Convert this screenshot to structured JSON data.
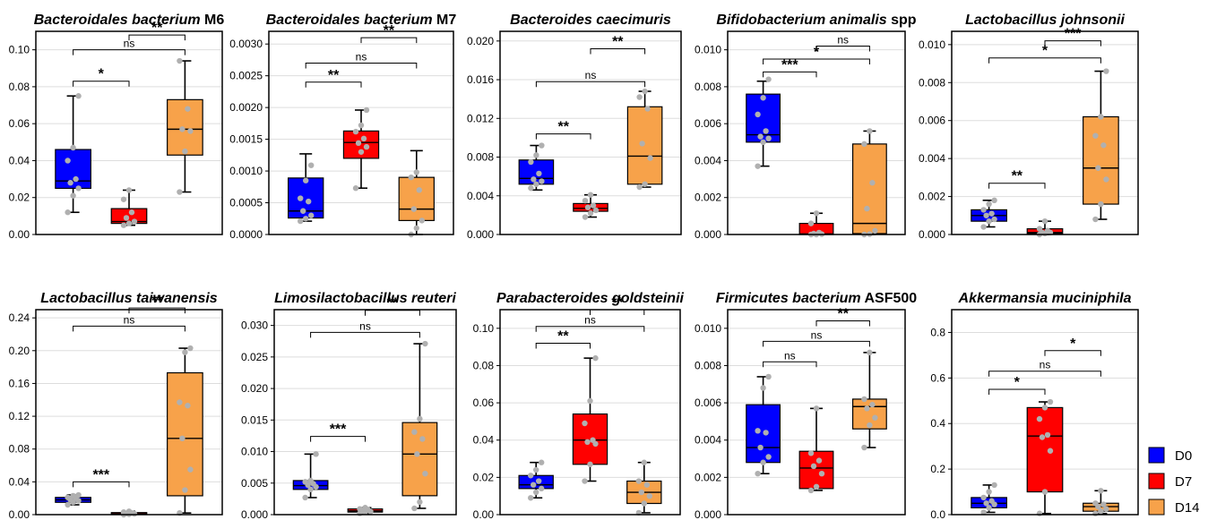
{
  "legend": {
    "entries": [
      {
        "label": "D0",
        "color": "#0000FF"
      },
      {
        "label": "D7",
        "color": "#FF0000"
      },
      {
        "label": "D14",
        "color": "#F7A24A"
      }
    ]
  },
  "chart_data": [
    {
      "type": "box",
      "title_italic": "Bacteroidales bacterium",
      "title_plain": " M6",
      "yticks": [
        "0.00",
        "0.02",
        "0.04",
        "0.06",
        "0.08",
        "0.10"
      ],
      "ylim": [
        0,
        0.11
      ],
      "categories": [
        "D0",
        "D7",
        "D14"
      ],
      "boxes": [
        {
          "group": "D0",
          "min": 0.012,
          "q1": 0.025,
          "median": 0.029,
          "q3": 0.046,
          "max": 0.075,
          "points": [
            0.012,
            0.021,
            0.025,
            0.028,
            0.03,
            0.04,
            0.047,
            0.075
          ]
        },
        {
          "group": "D7",
          "min": 0.005,
          "q1": 0.006,
          "median": 0.007,
          "q3": 0.014,
          "max": 0.024,
          "points": [
            0.005,
            0.006,
            0.007,
            0.009,
            0.012,
            0.019,
            0.024
          ]
        },
        {
          "group": "D14",
          "min": 0.023,
          "q1": 0.043,
          "median": 0.057,
          "q3": 0.073,
          "max": 0.094,
          "points": [
            0.023,
            0.045,
            0.056,
            0.057,
            0.068,
            0.094
          ]
        }
      ],
      "comparisons": [
        {
          "from": 0,
          "to": 1,
          "label": "*",
          "y": 0.083
        },
        {
          "from": 0,
          "to": 2,
          "label": "ns",
          "y": 0.1
        },
        {
          "from": 1,
          "to": 2,
          "label": "**",
          "y": 0.108
        }
      ]
    },
    {
      "type": "box",
      "title_italic": "Bacteroidales bacterium",
      "title_plain": " M7",
      "yticks": [
        "0.0000",
        "0.0005",
        "0.0010",
        "0.0015",
        "0.0020",
        "0.0025",
        "0.0030"
      ],
      "ylim": [
        0,
        0.0032
      ],
      "categories": [
        "D0",
        "D7",
        "D14"
      ],
      "boxes": [
        {
          "group": "D0",
          "min": 0.00021,
          "q1": 0.00026,
          "median": 0.00037,
          "q3": 0.00089,
          "max": 0.00127,
          "points": [
            0.00021,
            0.00025,
            0.0003,
            0.00037,
            0.00052,
            0.00057,
            0.00085,
            0.00109
          ]
        },
        {
          "group": "D7",
          "min": 0.00073,
          "q1": 0.0012,
          "median": 0.00145,
          "q3": 0.00163,
          "max": 0.00196,
          "points": [
            0.00073,
            0.0013,
            0.00138,
            0.00144,
            0.00151,
            0.00162,
            0.00172,
            0.00196
          ]
        },
        {
          "group": "D14",
          "min": 0,
          "q1": 0.00022,
          "median": 0.0004,
          "q3": 0.0009,
          "max": 0.00132,
          "points": [
            0,
            0.0001,
            0.00022,
            0.0004,
            0.0007,
            0.0009,
            0.00098
          ]
        }
      ],
      "comparisons": [
        {
          "from": 0,
          "to": 1,
          "label": "**",
          "y": 0.0024
        },
        {
          "from": 0,
          "to": 2,
          "label": "ns",
          "y": 0.0027
        },
        {
          "from": 1,
          "to": 2,
          "label": "**",
          "y": 0.0031
        }
      ]
    },
    {
      "type": "box",
      "title_italic": "Bacteroides caecimuris",
      "title_plain": "",
      "yticks": [
        "0.000",
        "0.004",
        "0.008",
        "0.012",
        "0.016",
        "0.020"
      ],
      "ylim": [
        0,
        0.021
      ],
      "categories": [
        "D0",
        "D7",
        "D14"
      ],
      "boxes": [
        {
          "group": "D0",
          "min": 0.0046,
          "q1": 0.0052,
          "median": 0.0058,
          "q3": 0.0077,
          "max": 0.0092,
          "points": [
            0.0048,
            0.0052,
            0.0055,
            0.0057,
            0.0063,
            0.0075,
            0.0082,
            0.0092
          ]
        },
        {
          "group": "D7",
          "min": 0.0018,
          "q1": 0.0024,
          "median": 0.0027,
          "q3": 0.0032,
          "max": 0.0041,
          "points": [
            0.0018,
            0.0022,
            0.0025,
            0.0028,
            0.003,
            0.0035,
            0.0041
          ]
        },
        {
          "group": "D14",
          "min": 0.0049,
          "q1": 0.0052,
          "median": 0.0081,
          "q3": 0.0132,
          "max": 0.0148,
          "points": [
            0.0049,
            0.0052,
            0.0079,
            0.0094,
            0.013,
            0.0142,
            0.0148
          ]
        }
      ],
      "comparisons": [
        {
          "from": 0,
          "to": 1,
          "label": "**",
          "y": 0.0104
        },
        {
          "from": 0,
          "to": 2,
          "label": "ns",
          "y": 0.0158
        },
        {
          "from": 1,
          "to": 2,
          "label": "**",
          "y": 0.0192
        }
      ]
    },
    {
      "type": "box",
      "title_italic": "Bifidobacterium animalis",
      "title_plain": " spp",
      "yticks": [
        "0.000",
        "0.002",
        "0.004",
        "0.006",
        "0.008",
        "0.010"
      ],
      "ylim": [
        0,
        0.011
      ],
      "categories": [
        "D0",
        "D7",
        "D14"
      ],
      "boxes": [
        {
          "group": "D0",
          "min": 0.0037,
          "q1": 0.005,
          "median": 0.0054,
          "q3": 0.0076,
          "max": 0.0083,
          "points": [
            0.0037,
            0.005,
            0.0052,
            0.0053,
            0.0056,
            0.0065,
            0.0074,
            0.0084
          ]
        },
        {
          "group": "D7",
          "min": 0,
          "q1": 0,
          "median": 3e-05,
          "q3": 0.0006,
          "max": 0.00115,
          "points": [
            0,
            0,
            2e-05,
            5e-05,
            0.0001,
            0.0006,
            0.00115
          ]
        },
        {
          "group": "D14",
          "min": 0,
          "q1": 5e-05,
          "median": 0.0006,
          "q3": 0.0049,
          "max": 0.0056,
          "points": [
            0,
            2e-05,
            0.0002,
            0.0014,
            0.0028,
            0.0049,
            0.0056
          ]
        }
      ],
      "comparisons": [
        {
          "from": 0,
          "to": 1,
          "label": "***",
          "y": 0.0088
        },
        {
          "from": 0,
          "to": 2,
          "label": "*",
          "y": 0.0095
        },
        {
          "from": 1,
          "to": 2,
          "label": "ns",
          "y": 0.0102
        }
      ]
    },
    {
      "type": "box",
      "title_italic": "Lactobacillus johnsonii",
      "title_plain": "",
      "yticks": [
        "0.000",
        "0.002",
        "0.004",
        "0.006",
        "0.008",
        "0.010"
      ],
      "ylim": [
        0,
        0.0107
      ],
      "categories": [
        "D0",
        "D7",
        "D14"
      ],
      "boxes": [
        {
          "group": "D0",
          "min": 0.0004,
          "q1": 0.0007,
          "median": 0.001,
          "q3": 0.0013,
          "max": 0.0018,
          "points": [
            0.0004,
            0.0007,
            0.0008,
            0.001,
            0.0011,
            0.0013,
            0.0016,
            0.0018
          ]
        },
        {
          "group": "D7",
          "min": 0,
          "q1": 5e-05,
          "median": 0.0001,
          "q3": 0.0003,
          "max": 0.0007,
          "points": [
            0,
            5e-05,
            0.0001,
            0.0001,
            0.0002,
            0.0003,
            0.0007
          ]
        },
        {
          "group": "D14",
          "min": 0.0008,
          "q1": 0.0016,
          "median": 0.0035,
          "q3": 0.0062,
          "max": 0.0086,
          "points": [
            0.0008,
            0.0016,
            0.0029,
            0.0035,
            0.0047,
            0.0052,
            0.0062,
            0.0086
          ]
        }
      ],
      "comparisons": [
        {
          "from": 0,
          "to": 1,
          "label": "**",
          "y": 0.0027
        },
        {
          "from": 0,
          "to": 2,
          "label": "*",
          "y": 0.0093
        },
        {
          "from": 1,
          "to": 2,
          "label": "***",
          "y": 0.0102
        }
      ]
    },
    {
      "type": "box",
      "title_italic": "Lactobacillus taiwanensis",
      "title_plain": "",
      "yticks": [
        "0.00",
        "0.04",
        "0.08",
        "0.12",
        "0.16",
        "0.20",
        "0.24"
      ],
      "ylim": [
        0,
        0.25
      ],
      "categories": [
        "D0",
        "D7",
        "D14"
      ],
      "boxes": [
        {
          "group": "D0",
          "min": 0.012,
          "q1": 0.015,
          "median": 0.018,
          "q3": 0.021,
          "max": 0.024,
          "points": [
            0.012,
            0.015,
            0.017,
            0.018,
            0.02,
            0.021,
            0.023,
            0.024
          ]
        },
        {
          "group": "D7",
          "min": 0,
          "q1": 0.0005,
          "median": 0.001,
          "q3": 0.0025,
          "max": 0.004,
          "points": [
            0,
            0.0005,
            0.001,
            0.0015,
            0.002,
            0.003,
            0.004
          ]
        },
        {
          "group": "D14",
          "min": 0.002,
          "q1": 0.023,
          "median": 0.093,
          "q3": 0.173,
          "max": 0.203,
          "points": [
            0.002,
            0.03,
            0.055,
            0.093,
            0.133,
            0.137,
            0.198,
            0.203
          ]
        }
      ],
      "comparisons": [
        {
          "from": 0,
          "to": 1,
          "label": "***",
          "y": 0.04
        },
        {
          "from": 0,
          "to": 2,
          "label": "ns",
          "y": 0.23
        },
        {
          "from": 1,
          "to": 2,
          "label": "**",
          "y": 0.252
        }
      ]
    },
    {
      "type": "box",
      "title_italic": "Limosilactobacillus reuteri",
      "title_plain": "",
      "yticks": [
        "0.000",
        "0.005",
        "0.010",
        "0.015",
        "0.020",
        "0.025",
        "0.030"
      ],
      "ylim": [
        0,
        0.0325
      ],
      "categories": [
        "D0",
        "D7",
        "D14"
      ],
      "boxes": [
        {
          "group": "D0",
          "min": 0.0027,
          "q1": 0.004,
          "median": 0.0046,
          "q3": 0.0054,
          "max": 0.0096,
          "points": [
            0.0027,
            0.004,
            0.0044,
            0.0047,
            0.0049,
            0.0052,
            0.0054,
            0.0096
          ]
        },
        {
          "group": "D7",
          "min": 0.0002,
          "q1": 0.0004,
          "median": 0.0006,
          "q3": 0.0009,
          "max": 0.0011,
          "points": [
            0.0002,
            0.0004,
            0.0005,
            0.0006,
            0.0008,
            0.0009,
            0.0011
          ]
        },
        {
          "group": "D14",
          "min": 0.001,
          "q1": 0.003,
          "median": 0.0096,
          "q3": 0.0146,
          "max": 0.0271,
          "points": [
            0.001,
            0.002,
            0.0065,
            0.0096,
            0.012,
            0.0131,
            0.0152,
            0.0271
          ]
        }
      ],
      "comparisons": [
        {
          "from": 0,
          "to": 1,
          "label": "***",
          "y": 0.0124
        },
        {
          "from": 0,
          "to": 2,
          "label": "ns",
          "y": 0.0289
        },
        {
          "from": 1,
          "to": 2,
          "label": "**",
          "y": 0.0324
        }
      ]
    },
    {
      "type": "box",
      "title_italic": "Parabacteroides goldsteinii",
      "title_plain": "",
      "yticks": [
        "0.00",
        "0.02",
        "0.04",
        "0.06",
        "0.08",
        "0.10"
      ],
      "ylim": [
        0,
        0.11
      ],
      "categories": [
        "D0",
        "D7",
        "D14"
      ],
      "boxes": [
        {
          "group": "D0",
          "min": 0.009,
          "q1": 0.014,
          "median": 0.016,
          "q3": 0.021,
          "max": 0.028,
          "points": [
            0.009,
            0.012,
            0.014,
            0.016,
            0.018,
            0.021,
            0.024,
            0.028
          ]
        },
        {
          "group": "D7",
          "min": 0.018,
          "q1": 0.027,
          "median": 0.04,
          "q3": 0.054,
          "max": 0.084,
          "points": [
            0.018,
            0.027,
            0.038,
            0.039,
            0.04,
            0.049,
            0.061,
            0.084
          ]
        },
        {
          "group": "D14",
          "min": 0.001,
          "q1": 0.006,
          "median": 0.012,
          "q3": 0.018,
          "max": 0.028,
          "points": [
            0.001,
            0.006,
            0.01,
            0.012,
            0.016,
            0.018,
            0.028
          ]
        }
      ],
      "comparisons": [
        {
          "from": 0,
          "to": 1,
          "label": "**",
          "y": 0.092
        },
        {
          "from": 0,
          "to": 2,
          "label": "ns",
          "y": 0.101
        },
        {
          "from": 1,
          "to": 2,
          "label": "**",
          "y": 0.11
        }
      ]
    },
    {
      "type": "box",
      "title_italic": "Firmicutes bacterium",
      "title_plain": " ASF500",
      "yticks": [
        "0.000",
        "0.002",
        "0.004",
        "0.006",
        "0.008",
        "0.010"
      ],
      "ylim": [
        0,
        0.011
      ],
      "categories": [
        "D0",
        "D7",
        "D14"
      ],
      "boxes": [
        {
          "group": "D0",
          "min": 0.0022,
          "q1": 0.0028,
          "median": 0.0036,
          "q3": 0.0059,
          "max": 0.0074,
          "points": [
            0.0022,
            0.0028,
            0.0031,
            0.0036,
            0.0044,
            0.0045,
            0.0068,
            0.0074
          ]
        },
        {
          "group": "D7",
          "min": 0.0013,
          "q1": 0.0014,
          "median": 0.0025,
          "q3": 0.0034,
          "max": 0.0057,
          "points": [
            0.0013,
            0.0015,
            0.0022,
            0.0026,
            0.0029,
            0.0033,
            0.0057
          ]
        },
        {
          "group": "D14",
          "min": 0.0036,
          "q1": 0.0046,
          "median": 0.0058,
          "q3": 0.0062,
          "max": 0.0087,
          "points": [
            0.0036,
            0.0048,
            0.0052,
            0.0057,
            0.0059,
            0.0062,
            0.0087
          ]
        }
      ],
      "comparisons": [
        {
          "from": 0,
          "to": 1,
          "label": "ns",
          "y": 0.0082
        },
        {
          "from": 0,
          "to": 2,
          "label": "ns",
          "y": 0.0093
        },
        {
          "from": 1,
          "to": 2,
          "label": "**",
          "y": 0.0104
        }
      ]
    },
    {
      "type": "box",
      "title_italic": "Akkermansia muciniphila",
      "title_plain": "",
      "yticks": [
        "0.0",
        "0.2",
        "0.4",
        "0.6",
        "0.8"
      ],
      "ylim": [
        0,
        0.9
      ],
      "categories": [
        "D0",
        "D7",
        "D14"
      ],
      "boxes": [
        {
          "group": "D0",
          "min": 0.01,
          "q1": 0.03,
          "median": 0.05,
          "q3": 0.075,
          "max": 0.13,
          "points": [
            0.01,
            0.03,
            0.045,
            0.05,
            0.06,
            0.075,
            0.1,
            0.13
          ]
        },
        {
          "group": "D7",
          "min": 0.005,
          "q1": 0.1,
          "median": 0.345,
          "q3": 0.47,
          "max": 0.495,
          "points": [
            0.005,
            0.1,
            0.28,
            0.34,
            0.35,
            0.42,
            0.47,
            0.495
          ]
        },
        {
          "group": "D14",
          "min": 0.005,
          "q1": 0.015,
          "median": 0.035,
          "q3": 0.05,
          "max": 0.105,
          "points": [
            0.005,
            0.015,
            0.025,
            0.035,
            0.045,
            0.05,
            0.105
          ]
        }
      ],
      "comparisons": [
        {
          "from": 0,
          "to": 1,
          "label": "*",
          "y": 0.55
        },
        {
          "from": 0,
          "to": 2,
          "label": "ns",
          "y": 0.63
        },
        {
          "from": 1,
          "to": 2,
          "label": "*",
          "y": 0.72
        }
      ]
    }
  ]
}
